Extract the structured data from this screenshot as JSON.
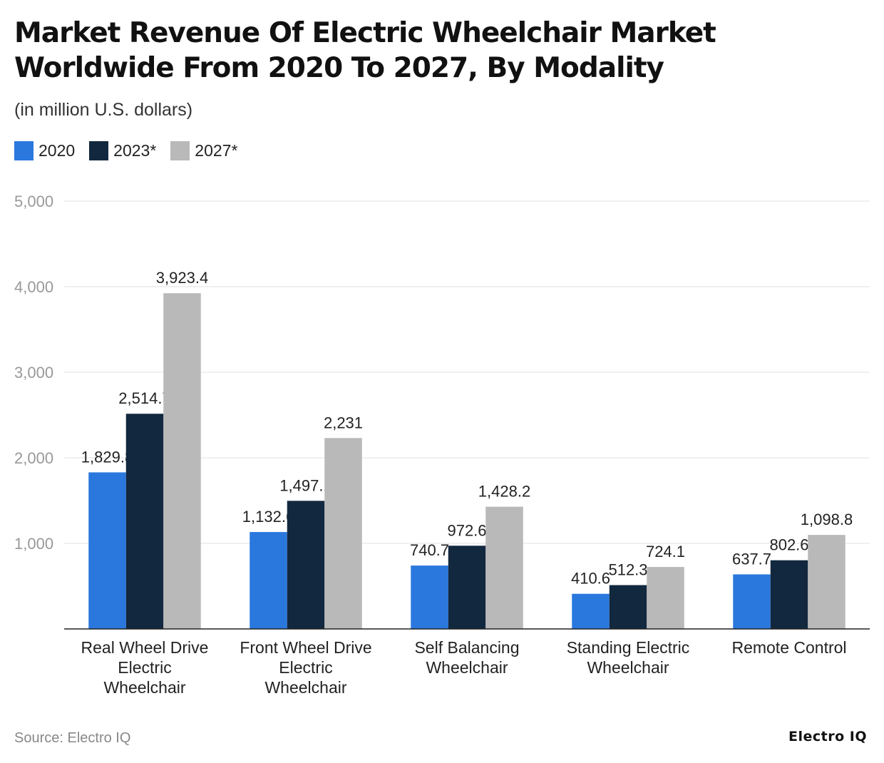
{
  "title": "Market Revenue Of Electric Wheelchair Market Worldwide From 2020 To 2027, By Modality",
  "subtitle": "(in million U.S. dollars)",
  "source": "Source: Electro IQ",
  "logo": "Electro IQ",
  "chart_data": {
    "type": "bar",
    "title": "Market Revenue Of Electric Wheelchair Market Worldwide From 2020 To 2027, By Modality",
    "subtitle": "(in million U.S. dollars)",
    "categories": [
      [
        "Real Wheel Drive",
        "Electric",
        "Wheelchair"
      ],
      [
        "Front Wheel Drive",
        "Electric",
        "Wheelchair"
      ],
      [
        "Self Balancing",
        "Wheelchair"
      ],
      [
        "Standing Electric",
        "Wheelchair"
      ],
      [
        "Remote Control"
      ]
    ],
    "series": [
      {
        "name": "2020",
        "color": "#2a78de",
        "values": [
          1829.8,
          1132.6,
          740.7,
          410.6,
          637.7
        ],
        "labels": [
          "1,829.8",
          "1,132.6",
          "740.7",
          "410.6",
          "637.7"
        ]
      },
      {
        "name": "2023*",
        "color": "#12283f",
        "values": [
          2514.7,
          1497.1,
          972.6,
          512.3,
          802.6
        ],
        "labels": [
          "2,514.7",
          "1,497.1",
          "972.6",
          "512.3",
          "802.6"
        ]
      },
      {
        "name": "2027*",
        "color": "#b9b9b9",
        "values": [
          3923.4,
          2231,
          1428.2,
          724.1,
          1098.8
        ],
        "labels": [
          "3,923.4",
          "2,231",
          "1,428.2",
          "724.1",
          "1,098.8"
        ]
      }
    ],
    "ylim": [
      0,
      5000
    ],
    "yticks": [
      1000,
      2000,
      3000,
      4000,
      5000
    ],
    "ytick_labels": [
      "1,000",
      "2,000",
      "3,000",
      "4,000",
      "5,000"
    ],
    "grid": true,
    "legend_placement": "top-left"
  }
}
